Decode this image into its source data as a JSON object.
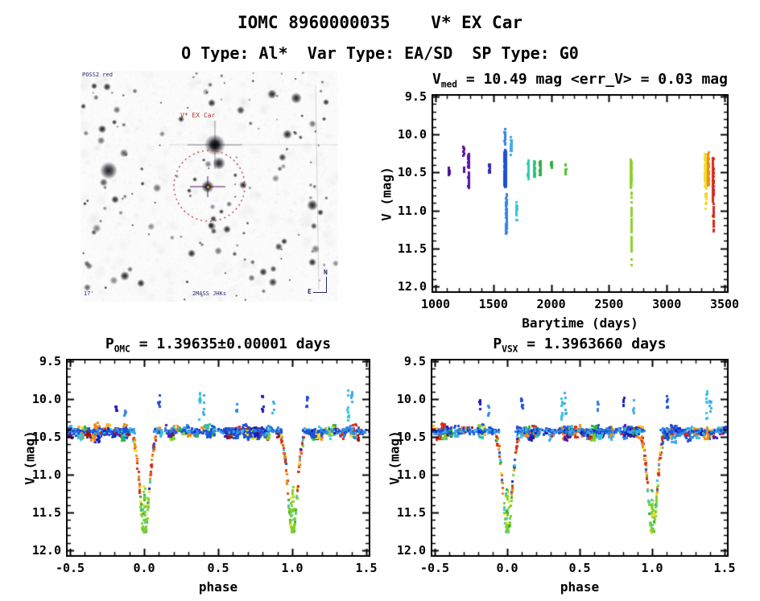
{
  "header": {
    "title": "IOMC 8960000035    V* EX Car",
    "subtitle": "O Type: Al*  Var Type: EA/SD  SP Type: G0"
  },
  "finding_chart": {
    "source_label": "POSS2 red",
    "target_label": "V* EX Car",
    "bottom_label": "2MASS JHKs",
    "scale_label": "17'",
    "compass_north": "N",
    "compass_east": "E",
    "circle_color": "#b52a3a",
    "target_marker_color": "#e08020"
  },
  "chart_data": [
    {
      "id": "v-vs-barytime",
      "type": "scatter",
      "title_base": "V",
      "title_sub": "med",
      "title_rest": " = 10.49 mag <err_V> = 0.03 mag",
      "xlabel": "Barytime (days)",
      "ylabel": "V (mag)",
      "xlim": [
        1000,
        3500
      ],
      "ylim": [
        9.5,
        12.0
      ],
      "y_inverted": true,
      "grid": false,
      "legend": "none",
      "xticks": [
        1000,
        1500,
        2000,
        2500,
        3000,
        3500
      ],
      "xtick_labels": [
        "1000",
        "1500",
        "2000",
        "2500",
        "3000",
        "3500"
      ],
      "yticks": [
        9.5,
        10.0,
        10.5,
        11.0,
        11.5,
        12.0
      ],
      "ytick_labels": [
        "9.5",
        "10.0",
        "10.5",
        "11.0",
        "11.5",
        "12.0"
      ],
      "x_minor": 100,
      "y_minor": 0.1,
      "marker": 3,
      "clusters": [
        {
          "t": 1115,
          "w": 6,
          "v": [
            10.4,
            10.58
          ],
          "n": 10,
          "color": "#4a0f9a"
        },
        {
          "t": 1240,
          "w": 5,
          "v": [
            10.14,
            10.3
          ],
          "n": 9,
          "color": "#5a0fa0"
        },
        {
          "t": 1243,
          "w": 4,
          "v": [
            10.42,
            10.52
          ],
          "n": 6,
          "color": "#5a0fa0"
        },
        {
          "t": 1283,
          "w": 9,
          "v": [
            10.24,
            10.45
          ],
          "n": 42,
          "color": "#5512a6"
        },
        {
          "t": 1285,
          "w": 8,
          "v": [
            10.45,
            10.72
          ],
          "n": 28,
          "color": "#5512a6"
        },
        {
          "t": 1465,
          "w": 9,
          "v": [
            10.36,
            10.52
          ],
          "n": 22,
          "color": "#3328b8"
        },
        {
          "t": 1600,
          "w": 13,
          "v": [
            10.18,
            10.72
          ],
          "n": 240,
          "color": "#1c4fd6"
        },
        {
          "t": 1598,
          "w": 7,
          "v": [
            9.9,
            10.18
          ],
          "n": 16,
          "color": "#2f86e0"
        },
        {
          "t": 1610,
          "w": 6,
          "v": [
            10.72,
            11.38
          ],
          "n": 55,
          "color": "#2f86e0"
        },
        {
          "t": 1652,
          "w": 6,
          "v": [
            9.98,
            10.3
          ],
          "n": 18,
          "color": "#3fa8e8"
        },
        {
          "t": 1698,
          "w": 6,
          "v": [
            10.88,
            11.2
          ],
          "n": 18,
          "color": "#35c3dc"
        },
        {
          "t": 1800,
          "w": 8,
          "v": [
            10.3,
            10.62
          ],
          "n": 26,
          "color": "#35c8b4"
        },
        {
          "t": 1852,
          "w": 11,
          "v": [
            10.3,
            10.6
          ],
          "n": 40,
          "color": "#2fbf86"
        },
        {
          "t": 1902,
          "w": 7,
          "v": [
            10.3,
            10.55
          ],
          "n": 22,
          "color": "#2fae3c"
        },
        {
          "t": 2002,
          "w": 9,
          "v": [
            10.33,
            10.46
          ],
          "n": 14,
          "color": "#2fae3c"
        },
        {
          "t": 2122,
          "w": 7,
          "v": [
            10.38,
            10.54
          ],
          "n": 13,
          "color": "#52c22e"
        },
        {
          "t": 2688,
          "w": 8,
          "v": [
            10.28,
            10.72
          ],
          "n": 85,
          "color": "#8ed02e"
        },
        {
          "t": 2692,
          "w": 5,
          "v": [
            10.72,
            11.76
          ],
          "n": 48,
          "color": "#8ed02e"
        },
        {
          "t": 3332,
          "w": 9,
          "v": [
            10.22,
            10.7
          ],
          "n": 110,
          "color": "#f0dc28"
        },
        {
          "t": 3338,
          "w": 7,
          "v": [
            10.7,
            11.0
          ],
          "n": 16,
          "color": "#f0dc28"
        },
        {
          "t": 3355,
          "w": 8,
          "v": [
            10.2,
            10.7
          ],
          "n": 90,
          "color": "#ef8c1a"
        },
        {
          "t": 3396,
          "w": 8,
          "v": [
            10.25,
            10.88
          ],
          "n": 110,
          "color": "#d42a1a"
        },
        {
          "t": 3401,
          "w": 5,
          "v": [
            10.88,
            11.32
          ],
          "n": 26,
          "color": "#d42a1a"
        }
      ]
    },
    {
      "id": "phase-omc",
      "type": "scatter",
      "title_base": "P",
      "title_sub": "OMC",
      "title_rest": " = 1.39635±0.00001 days",
      "xlabel": "phase",
      "ylabel": "V (mag)",
      "xlim": [
        -0.5,
        1.5
      ],
      "ylim": [
        9.5,
        12.0
      ],
      "y_inverted": true,
      "grid": false,
      "legend": "none",
      "xticks": [
        -0.5,
        0.0,
        0.5,
        1.0,
        1.5
      ],
      "xtick_labels": [
        "-0.5",
        "0.0",
        "0.5",
        "1.0",
        "1.5"
      ],
      "yticks": [
        9.5,
        10.0,
        10.5,
        11.0,
        11.5,
        12.0
      ],
      "ytick_labels": [
        "9.5",
        "10.0",
        "10.5",
        "11.0",
        "11.5",
        "12.0"
      ],
      "x_minor": 0.1,
      "y_minor": 0.1,
      "marker": 3,
      "seed": 7,
      "baseline": {
        "blob_n": 150,
        "v_mean": 10.44,
        "v_sigma": 0.085,
        "v_clip": [
          10.18,
          10.7
        ],
        "band_n": 420,
        "band_v": 10.42,
        "band_sigma": 0.045,
        "exclusion": 0.075
      },
      "eclipse": {
        "centers": [
          0,
          1
        ],
        "v_base": 10.48,
        "depth": 1.3,
        "width": 0.042,
        "wall_n": 115,
        "bottom_n": 26,
        "min_v": 11.76
      },
      "outliers": [
        {
          "phase": -0.19,
          "v": [
            9.97,
            10.16
          ],
          "n": 7,
          "color": "#1b1bb4"
        },
        {
          "phase": -0.13,
          "v": [
            10.05,
            10.22
          ],
          "n": 5,
          "color": "#2f86e0"
        },
        {
          "phase": 0.1,
          "v": [
            9.93,
            10.12
          ],
          "n": 7,
          "color": "#1c4fd6"
        },
        {
          "phase": 0.375,
          "v": [
            9.88,
            10.28
          ],
          "n": 10,
          "color": "#35c3dc"
        },
        {
          "phase": 0.4,
          "v": [
            9.9,
            10.2
          ],
          "n": 6,
          "color": "#3fa8e8"
        },
        {
          "phase": 0.625,
          "v": [
            10.02,
            10.2
          ],
          "n": 5,
          "color": "#2f86e0"
        },
        {
          "phase": 0.8,
          "v": [
            9.95,
            10.16
          ],
          "n": 7,
          "color": "#1b1bb4"
        },
        {
          "phase": 0.87,
          "v": [
            10.0,
            10.18
          ],
          "n": 5,
          "color": "#3fa8e8"
        },
        {
          "phase": 1.1,
          "v": [
            9.93,
            10.12
          ],
          "n": 7,
          "color": "#1c4fd6"
        },
        {
          "phase": 1.375,
          "v": [
            9.88,
            10.28
          ],
          "n": 10,
          "color": "#35c3dc"
        },
        {
          "phase": 1.4,
          "v": [
            9.9,
            10.2
          ],
          "n": 6,
          "color": "#3fa8e8"
        }
      ],
      "palette_baseline": [
        [
          "#1c4fd6",
          20
        ],
        [
          "#2f86e0",
          13
        ],
        [
          "#1b1bb4",
          8
        ],
        [
          "#d42a1a",
          11
        ],
        [
          "#ef8c1a",
          8
        ],
        [
          "#f0dc28",
          4
        ],
        [
          "#f5b81f",
          3
        ],
        [
          "#2fae3c",
          6
        ],
        [
          "#7ed02e",
          5
        ],
        [
          "#35c3dc",
          7
        ],
        [
          "#3fa8e8",
          5
        ],
        [
          "#5a0fa0",
          4
        ],
        [
          "#a01010",
          3
        ],
        [
          "#2fbf9b",
          3
        ]
      ],
      "palette_band": [
        [
          "#1c4fd6",
          45
        ],
        [
          "#2f86e0",
          25
        ],
        [
          "#3fa8e8",
          15
        ],
        [
          "#35c3dc",
          8
        ],
        [
          "#1b1bb4",
          7
        ]
      ],
      "palette_wall": [
        [
          "#d42a1a",
          32
        ],
        [
          "#e8541a",
          10
        ],
        [
          "#ef8c1a",
          20
        ],
        [
          "#f0dc28",
          12
        ],
        [
          "#7ed02e",
          7
        ],
        [
          "#1c4fd6",
          6
        ],
        [
          "#35c3dc",
          5
        ],
        [
          "#2fae3c",
          4
        ],
        [
          "#1b1bb4",
          4
        ]
      ],
      "palette_bottom": [
        [
          "#7ed02e",
          70
        ],
        [
          "#2fae3c",
          14
        ],
        [
          "#35c3dc",
          8
        ],
        [
          "#f0dc28",
          8
        ]
      ]
    },
    {
      "id": "phase-vsx",
      "type": "scatter",
      "title_base": "P",
      "title_sub": "VSX",
      "title_rest": " = 1.3963660 days",
      "xlabel": "phase",
      "ylabel": "V (mag)",
      "xlim": [
        -0.5,
        1.5
      ],
      "ylim": [
        9.5,
        12.0
      ],
      "y_inverted": true,
      "grid": false,
      "legend": "none",
      "xticks": [
        -0.5,
        0.0,
        0.5,
        1.0,
        1.5
      ],
      "xtick_labels": [
        "-0.5",
        "0.0",
        "0.5",
        "1.0",
        "1.5"
      ],
      "yticks": [
        9.5,
        10.0,
        10.5,
        11.0,
        11.5,
        12.0
      ],
      "ytick_labels": [
        "9.5",
        "10.0",
        "10.5",
        "11.0",
        "11.5",
        "12.0"
      ],
      "x_minor": 0.1,
      "y_minor": 0.1,
      "marker": 3,
      "seed": 13,
      "baseline": {
        "blob_n": 150,
        "v_mean": 10.44,
        "v_sigma": 0.085,
        "v_clip": [
          10.18,
          10.7
        ],
        "band_n": 420,
        "band_v": 10.42,
        "band_sigma": 0.045,
        "exclusion": 0.075
      },
      "eclipse": {
        "centers": [
          0,
          1
        ],
        "v_base": 10.48,
        "depth": 1.3,
        "width": 0.042,
        "wall_n": 115,
        "bottom_n": 26,
        "min_v": 11.76
      },
      "outliers": [
        {
          "phase": -0.19,
          "v": [
            9.97,
            10.16
          ],
          "n": 7,
          "color": "#1b1bb4"
        },
        {
          "phase": -0.13,
          "v": [
            10.05,
            10.22
          ],
          "n": 5,
          "color": "#2f86e0"
        },
        {
          "phase": 0.1,
          "v": [
            9.93,
            10.12
          ],
          "n": 7,
          "color": "#1c4fd6"
        },
        {
          "phase": 0.375,
          "v": [
            9.88,
            10.28
          ],
          "n": 10,
          "color": "#35c3dc"
        },
        {
          "phase": 0.4,
          "v": [
            9.9,
            10.2
          ],
          "n": 6,
          "color": "#3fa8e8"
        },
        {
          "phase": 0.625,
          "v": [
            10.02,
            10.2
          ],
          "n": 5,
          "color": "#2f86e0"
        },
        {
          "phase": 0.8,
          "v": [
            9.95,
            10.16
          ],
          "n": 7,
          "color": "#1b1bb4"
        },
        {
          "phase": 0.87,
          "v": [
            10.0,
            10.18
          ],
          "n": 5,
          "color": "#3fa8e8"
        },
        {
          "phase": 1.1,
          "v": [
            9.93,
            10.12
          ],
          "n": 7,
          "color": "#1c4fd6"
        },
        {
          "phase": 1.375,
          "v": [
            9.88,
            10.28
          ],
          "n": 10,
          "color": "#35c3dc"
        },
        {
          "phase": 1.4,
          "v": [
            9.9,
            10.2
          ],
          "n": 6,
          "color": "#3fa8e8"
        }
      ],
      "palette_baseline": [
        [
          "#1c4fd6",
          20
        ],
        [
          "#2f86e0",
          13
        ],
        [
          "#1b1bb4",
          8
        ],
        [
          "#d42a1a",
          11
        ],
        [
          "#ef8c1a",
          8
        ],
        [
          "#f0dc28",
          4
        ],
        [
          "#f5b81f",
          3
        ],
        [
          "#2fae3c",
          6
        ],
        [
          "#7ed02e",
          5
        ],
        [
          "#35c3dc",
          7
        ],
        [
          "#3fa8e8",
          5
        ],
        [
          "#5a0fa0",
          4
        ],
        [
          "#a01010",
          3
        ],
        [
          "#2fbf9b",
          3
        ]
      ],
      "palette_band": [
        [
          "#1c4fd6",
          45
        ],
        [
          "#2f86e0",
          25
        ],
        [
          "#3fa8e8",
          15
        ],
        [
          "#35c3dc",
          8
        ],
        [
          "#1b1bb4",
          7
        ]
      ],
      "palette_wall": [
        [
          "#d42a1a",
          32
        ],
        [
          "#e8541a",
          10
        ],
        [
          "#ef8c1a",
          20
        ],
        [
          "#f0dc28",
          12
        ],
        [
          "#7ed02e",
          7
        ],
        [
          "#1c4fd6",
          6
        ],
        [
          "#35c3dc",
          5
        ],
        [
          "#2fae3c",
          4
        ],
        [
          "#1b1bb4",
          4
        ]
      ],
      "palette_bottom": [
        [
          "#7ed02e",
          70
        ],
        [
          "#2fae3c",
          14
        ],
        [
          "#35c3dc",
          8
        ],
        [
          "#f0dc28",
          8
        ]
      ]
    }
  ]
}
